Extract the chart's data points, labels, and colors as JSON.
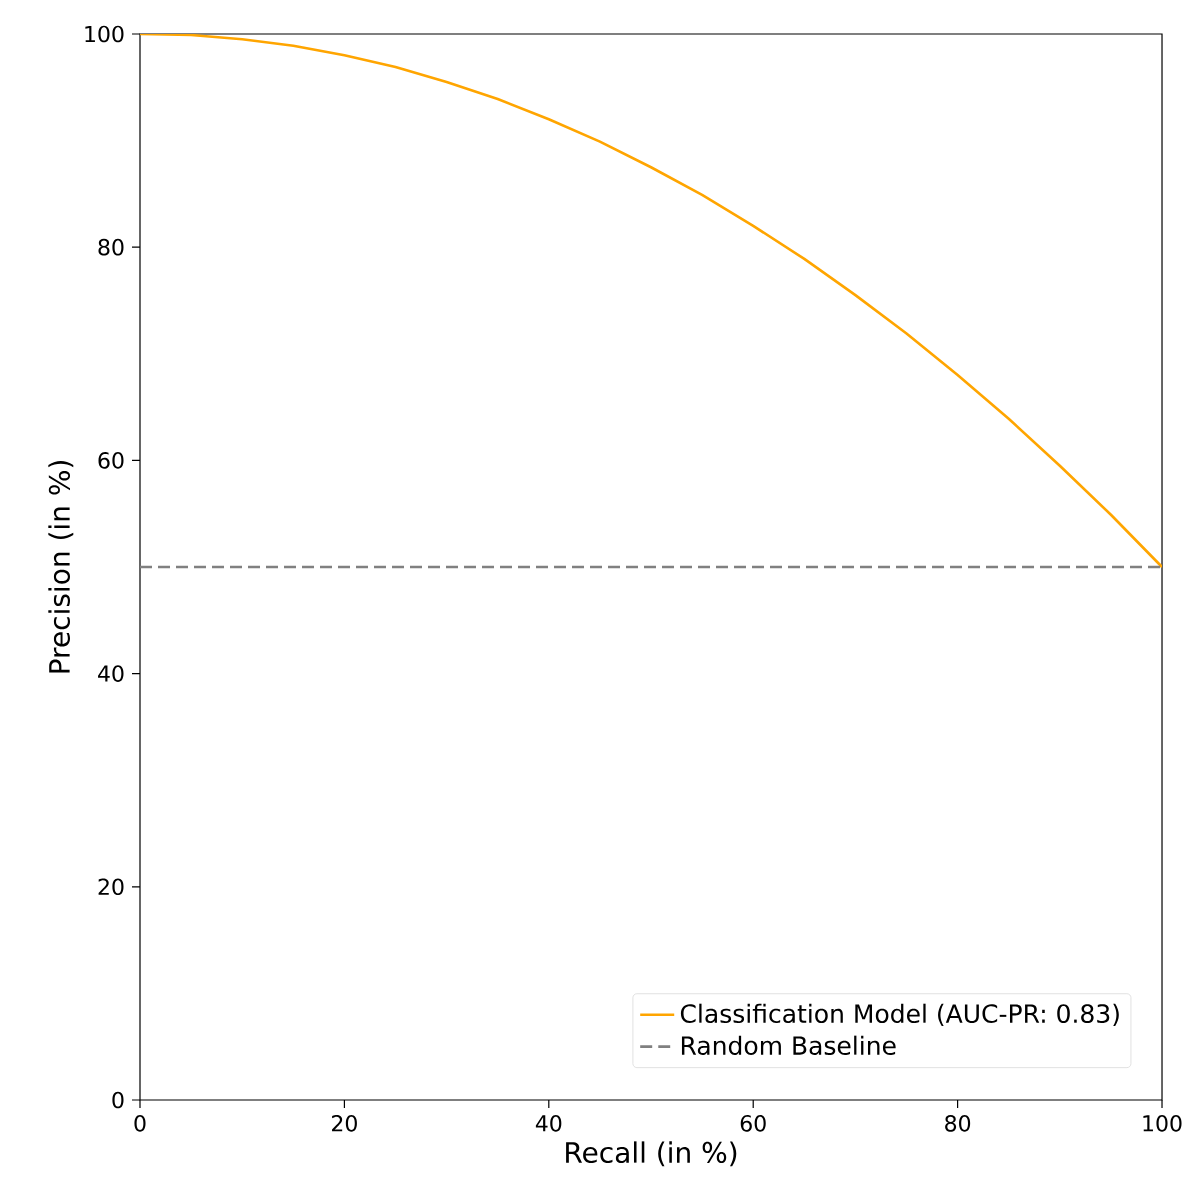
{
  "chart_data": {
    "type": "line",
    "xlabel": "Recall (in %)",
    "ylabel": "Precision (in %)",
    "x": [
      0,
      5,
      10,
      15,
      20,
      25,
      30,
      35,
      40,
      45,
      50,
      55,
      60,
      65,
      70,
      75,
      80,
      85,
      90,
      95,
      100
    ],
    "series": [
      {
        "name": "Classification Model (AUC-PR: 0.83)",
        "color": "#ffa500",
        "line_style": "solid",
        "values": [
          100,
          99.9,
          99.5,
          98.9,
          98,
          96.9,
          95.5,
          93.9,
          92,
          89.9,
          87.5,
          84.9,
          82,
          78.9,
          75.5,
          71.9,
          68,
          63.9,
          59.5,
          54.9,
          50
        ]
      },
      {
        "name": "Random Baseline",
        "color": "#808080",
        "line_style": "dashed",
        "x": [
          0,
          100
        ],
        "values": [
          50,
          50
        ]
      }
    ],
    "xlim": [
      0,
      100
    ],
    "ylim": [
      0,
      100
    ],
    "xticks": [
      0,
      20,
      40,
      60,
      80,
      100
    ],
    "yticks": [
      0,
      20,
      40,
      60,
      80,
      100
    ],
    "legend": "bottom right",
    "marker": "none",
    "grid": false
  }
}
